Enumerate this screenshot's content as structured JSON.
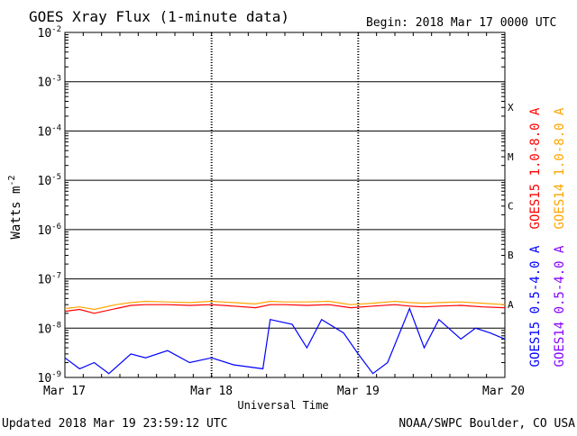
{
  "chart_data": {
    "type": "line",
    "title": "GOES Xray Flux (1-minute data)",
    "begin_text": "Begin:  2018 Mar 17 0000 UTC",
    "xlabel": "Universal Time",
    "ylabel": "Watts m",
    "ylabel_exponent": "-2",
    "updated_text": "Updated 2018 Mar 19 23:59:12 UTC",
    "credit_text": "NOAA/SWPC Boulder, CO USA",
    "yscale": "log",
    "ylim": [
      1e-09,
      0.01
    ],
    "xlim_days": [
      0,
      3
    ],
    "grid": true,
    "legend_placement": "right, vertical",
    "x_ticks": [
      {
        "day": 0,
        "label": "Mar 17"
      },
      {
        "day": 1,
        "label": "Mar 18"
      },
      {
        "day": 2,
        "label": "Mar 19"
      },
      {
        "day": 3,
        "label": "Mar 20"
      }
    ],
    "y_ticks": [
      {
        "exp": -2,
        "base": "10",
        "sup": "-2"
      },
      {
        "exp": -3,
        "base": "10",
        "sup": "-3"
      },
      {
        "exp": -4,
        "base": "10",
        "sup": "-4"
      },
      {
        "exp": -5,
        "base": "10",
        "sup": "-5"
      },
      {
        "exp": -6,
        "base": "10",
        "sup": "-6"
      },
      {
        "exp": -7,
        "base": "10",
        "sup": "-7"
      },
      {
        "exp": -8,
        "base": "10",
        "sup": "-8"
      },
      {
        "exp": -9,
        "base": "10",
        "sup": "-9"
      }
    ],
    "flare_classes": [
      {
        "label": "X",
        "exp": -4
      },
      {
        "label": "M",
        "exp": -5
      },
      {
        "label": "C",
        "exp": -6
      },
      {
        "label": "B",
        "exp": -7
      },
      {
        "label": "A",
        "exp": -8
      }
    ],
    "series": [
      {
        "name": "GOES15 1.0-8.0 A",
        "color": "#ff0000",
        "points": [
          [
            0,
            2.2e-08
          ],
          [
            0.1,
            2.4e-08
          ],
          [
            0.2,
            2e-08
          ],
          [
            0.35,
            2.5e-08
          ],
          [
            0.45,
            2.9e-08
          ],
          [
            0.55,
            3e-08
          ],
          [
            0.7,
            3e-08
          ],
          [
            0.85,
            2.9e-08
          ],
          [
            1.0,
            3e-08
          ],
          [
            1.15,
            2.8e-08
          ],
          [
            1.3,
            2.6e-08
          ],
          [
            1.4,
            3e-08
          ],
          [
            1.5,
            3e-08
          ],
          [
            1.65,
            2.9e-08
          ],
          [
            1.8,
            3e-08
          ],
          [
            1.95,
            2.6e-08
          ],
          [
            2.1,
            2.8e-08
          ],
          [
            2.25,
            3e-08
          ],
          [
            2.35,
            2.8e-08
          ],
          [
            2.45,
            2.7e-08
          ],
          [
            2.55,
            2.8e-08
          ],
          [
            2.7,
            2.9e-08
          ],
          [
            2.85,
            2.7e-08
          ],
          [
            3.0,
            2.6e-08
          ]
        ]
      },
      {
        "name": "GOES14 1.0-8.0 A",
        "color": "#ffa500",
        "points": [
          [
            0,
            2.5e-08
          ],
          [
            0.1,
            2.7e-08
          ],
          [
            0.2,
            2.4e-08
          ],
          [
            0.35,
            3e-08
          ],
          [
            0.45,
            3.3e-08
          ],
          [
            0.55,
            3.5e-08
          ],
          [
            0.7,
            3.4e-08
          ],
          [
            0.85,
            3.3e-08
          ],
          [
            1.0,
            3.5e-08
          ],
          [
            1.15,
            3.3e-08
          ],
          [
            1.3,
            3.1e-08
          ],
          [
            1.4,
            3.5e-08
          ],
          [
            1.5,
            3.4e-08
          ],
          [
            1.65,
            3.4e-08
          ],
          [
            1.8,
            3.5e-08
          ],
          [
            1.95,
            3e-08
          ],
          [
            2.1,
            3.2e-08
          ],
          [
            2.25,
            3.5e-08
          ],
          [
            2.35,
            3.3e-08
          ],
          [
            2.45,
            3.2e-08
          ],
          [
            2.55,
            3.3e-08
          ],
          [
            2.7,
            3.4e-08
          ],
          [
            2.85,
            3.2e-08
          ],
          [
            3.0,
            3e-08
          ]
        ]
      },
      {
        "name": "GOES15 0.5-4.0 A",
        "color": "#0000ff",
        "points": [
          [
            0,
            2.5e-09
          ],
          [
            0.1,
            1.5e-09
          ],
          [
            0.2,
            2e-09
          ],
          [
            0.3,
            1.2e-09
          ],
          [
            0.45,
            3e-09
          ],
          [
            0.55,
            2.5e-09
          ],
          [
            0.7,
            3.5e-09
          ],
          [
            0.85,
            2e-09
          ],
          [
            1.0,
            2.5e-09
          ],
          [
            1.15,
            1.8e-09
          ],
          [
            1.35,
            1.5e-09
          ],
          [
            1.4,
            1.5e-08
          ],
          [
            1.55,
            1.2e-08
          ],
          [
            1.65,
            4e-09
          ],
          [
            1.75,
            1.5e-08
          ],
          [
            1.9,
            8e-09
          ],
          [
            2.0,
            3e-09
          ],
          [
            2.1,
            1.2e-09
          ],
          [
            2.2,
            2e-09
          ],
          [
            2.35,
            2.5e-08
          ],
          [
            2.45,
            4e-09
          ],
          [
            2.55,
            1.5e-08
          ],
          [
            2.7,
            6e-09
          ],
          [
            2.8,
            1e-08
          ],
          [
            2.9,
            8e-09
          ],
          [
            3.0,
            6e-09
          ]
        ]
      },
      {
        "name": "GOES14 0.5-4.0 A",
        "color": "#8800ff",
        "points": []
      }
    ]
  }
}
